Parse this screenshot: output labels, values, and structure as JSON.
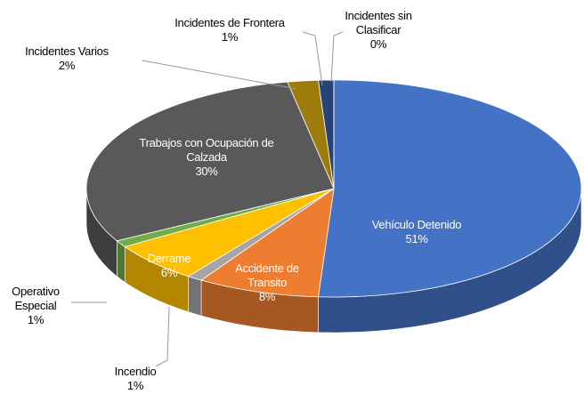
{
  "chart_data": {
    "type": "pie",
    "categories": [
      "Vehículo Detenido",
      "Accidente de Transito",
      "Incendio",
      "Derrame",
      "Operativo Especial",
      "Trabajos con Ocupación de Calzada",
      "Incidentes Varios",
      "Incidentes de Frontera",
      "Incidentes sin Clasificar"
    ],
    "values": [
      51,
      8,
      1,
      6,
      1,
      30,
      2,
      1,
      0
    ],
    "value_labels": [
      "51%",
      "8%",
      "1%",
      "6%",
      "1%",
      "30%",
      "2%",
      "1%",
      "0%"
    ],
    "colors": [
      "#4472c4",
      "#ed7d31",
      "#a5a5a5",
      "#ffc000",
      "#70ad47",
      "#595959",
      "#9e7c0c",
      "#264478",
      "#43682b"
    ]
  }
}
